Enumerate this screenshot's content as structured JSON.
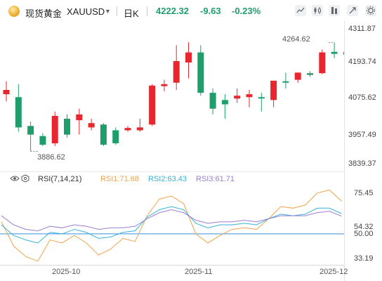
{
  "header": {
    "name": "现货黄金",
    "symbol": "XAUUSD",
    "period": "日K",
    "price": "4222.32",
    "change": "-9.63",
    "change_pct": "-0.23%"
  },
  "toolbar": {
    "icons": [
      "line-chart-icon",
      "candle-style-icon",
      "bar-style-icon",
      "compare-icon",
      "settings-icon"
    ]
  },
  "price_axis": {
    "labels": [
      "4311.87",
      "4193.74",
      "4075.62",
      "3957.49",
      "3839.37"
    ]
  },
  "annotations": {
    "high": "4264.62",
    "low": "3886.62"
  },
  "rsi": {
    "title": "RSI(7,14,21)",
    "rsi1": "RSI1:71.68",
    "rsi2": "RSI2:63.43",
    "rsi3": "RSI3:61.71",
    "axis_labels": [
      "75.45",
      "54.32",
      "50.00",
      "33.19"
    ]
  },
  "time_axis": {
    "labels": [
      "2025-10",
      "2025-11",
      "2025-12"
    ]
  },
  "colors": {
    "up": "#e8262d",
    "down": "#1f9e6b",
    "rsi1": "#f0a24a",
    "rsi2": "#36b2d6",
    "rsi3": "#9b7ed4",
    "midline": "#3d8fe0"
  },
  "chart_data": [
    {
      "type": "candlestick",
      "ylim": [
        3839.37,
        4311.87
      ],
      "candles": [
        {
          "o": 4085,
          "h": 4130,
          "l": 4060,
          "c": 4100
        },
        {
          "o": 4075,
          "h": 4120,
          "l": 3955,
          "c": 3970
        },
        {
          "o": 3975,
          "h": 3990,
          "l": 3887,
          "c": 3945
        },
        {
          "o": 3940,
          "h": 3950,
          "l": 3905,
          "c": 3910
        },
        {
          "o": 3915,
          "h": 4025,
          "l": 3905,
          "c": 4010
        },
        {
          "o": 4000,
          "h": 4015,
          "l": 3935,
          "c": 3945
        },
        {
          "o": 3995,
          "h": 4035,
          "l": 3945,
          "c": 4015
        },
        {
          "o": 3970,
          "h": 4000,
          "l": 3960,
          "c": 3985
        },
        {
          "o": 3980,
          "h": 3985,
          "l": 3905,
          "c": 3910
        },
        {
          "o": 3960,
          "h": 3970,
          "l": 3910,
          "c": 3915
        },
        {
          "o": 3960,
          "h": 3975,
          "l": 3955,
          "c": 3968
        },
        {
          "o": 3960,
          "h": 4000,
          "l": 3955,
          "c": 3970
        },
        {
          "o": 3980,
          "h": 4120,
          "l": 3975,
          "c": 4115
        },
        {
          "o": 4113,
          "h": 4135,
          "l": 4095,
          "c": 4120
        },
        {
          "o": 4125,
          "h": 4255,
          "l": 4100,
          "c": 4200
        },
        {
          "o": 4195,
          "h": 4265,
          "l": 4140,
          "c": 4230
        },
        {
          "o": 4230,
          "h": 4255,
          "l": 4080,
          "c": 4090
        },
        {
          "o": 4090,
          "h": 4105,
          "l": 4015,
          "c": 4035
        },
        {
          "o": 4065,
          "h": 4085,
          "l": 4000,
          "c": 4050
        },
        {
          "o": 4070,
          "h": 4105,
          "l": 4055,
          "c": 4080
        },
        {
          "o": 4075,
          "h": 4100,
          "l": 4040,
          "c": 4085
        },
        {
          "o": 4075,
          "h": 4090,
          "l": 4025,
          "c": 4070
        },
        {
          "o": 4065,
          "h": 4130,
          "l": 4040,
          "c": 4132
        },
        {
          "o": 4130,
          "h": 4160,
          "l": 4105,
          "c": 4125
        },
        {
          "o": 4135,
          "h": 4160,
          "l": 4125,
          "c": 4160
        },
        {
          "o": 4158,
          "h": 4165,
          "l": 4145,
          "c": 4152
        },
        {
          "o": 4158,
          "h": 4240,
          "l": 4155,
          "c": 4230
        },
        {
          "o": 4232,
          "h": 4264.62,
          "l": 4210,
          "c": 4225
        },
        {
          "o": 4232,
          "h": 4240,
          "l": 4218,
          "c": 4222.32
        }
      ]
    },
    {
      "type": "line",
      "ylim": [
        30,
        82
      ],
      "series": [
        {
          "name": "RSI1",
          "values": [
            58,
            42,
            35,
            32,
            46,
            44,
            49,
            44,
            36,
            40,
            47,
            45,
            62,
            73,
            75,
            70,
            50,
            44,
            49,
            53,
            54,
            53,
            60,
            68,
            67,
            69,
            77,
            79,
            71.68
          ]
        },
        {
          "name": "RSI2",
          "values": [
            56,
            49,
            46,
            44,
            51,
            50,
            53,
            51,
            47,
            48,
            51,
            52,
            61,
            66,
            68,
            66,
            57,
            54,
            56,
            56,
            57,
            56,
            60,
            63,
            62,
            63,
            67,
            67,
            63.43
          ]
        },
        {
          "name": "RSI3",
          "values": [
            62,
            56,
            53,
            52,
            55,
            54,
            56,
            55,
            53,
            54,
            54,
            55,
            60,
            64,
            66,
            64,
            59,
            57,
            58,
            58,
            59,
            58,
            60,
            62,
            62,
            62,
            64,
            65,
            61.71
          ]
        }
      ]
    }
  ]
}
